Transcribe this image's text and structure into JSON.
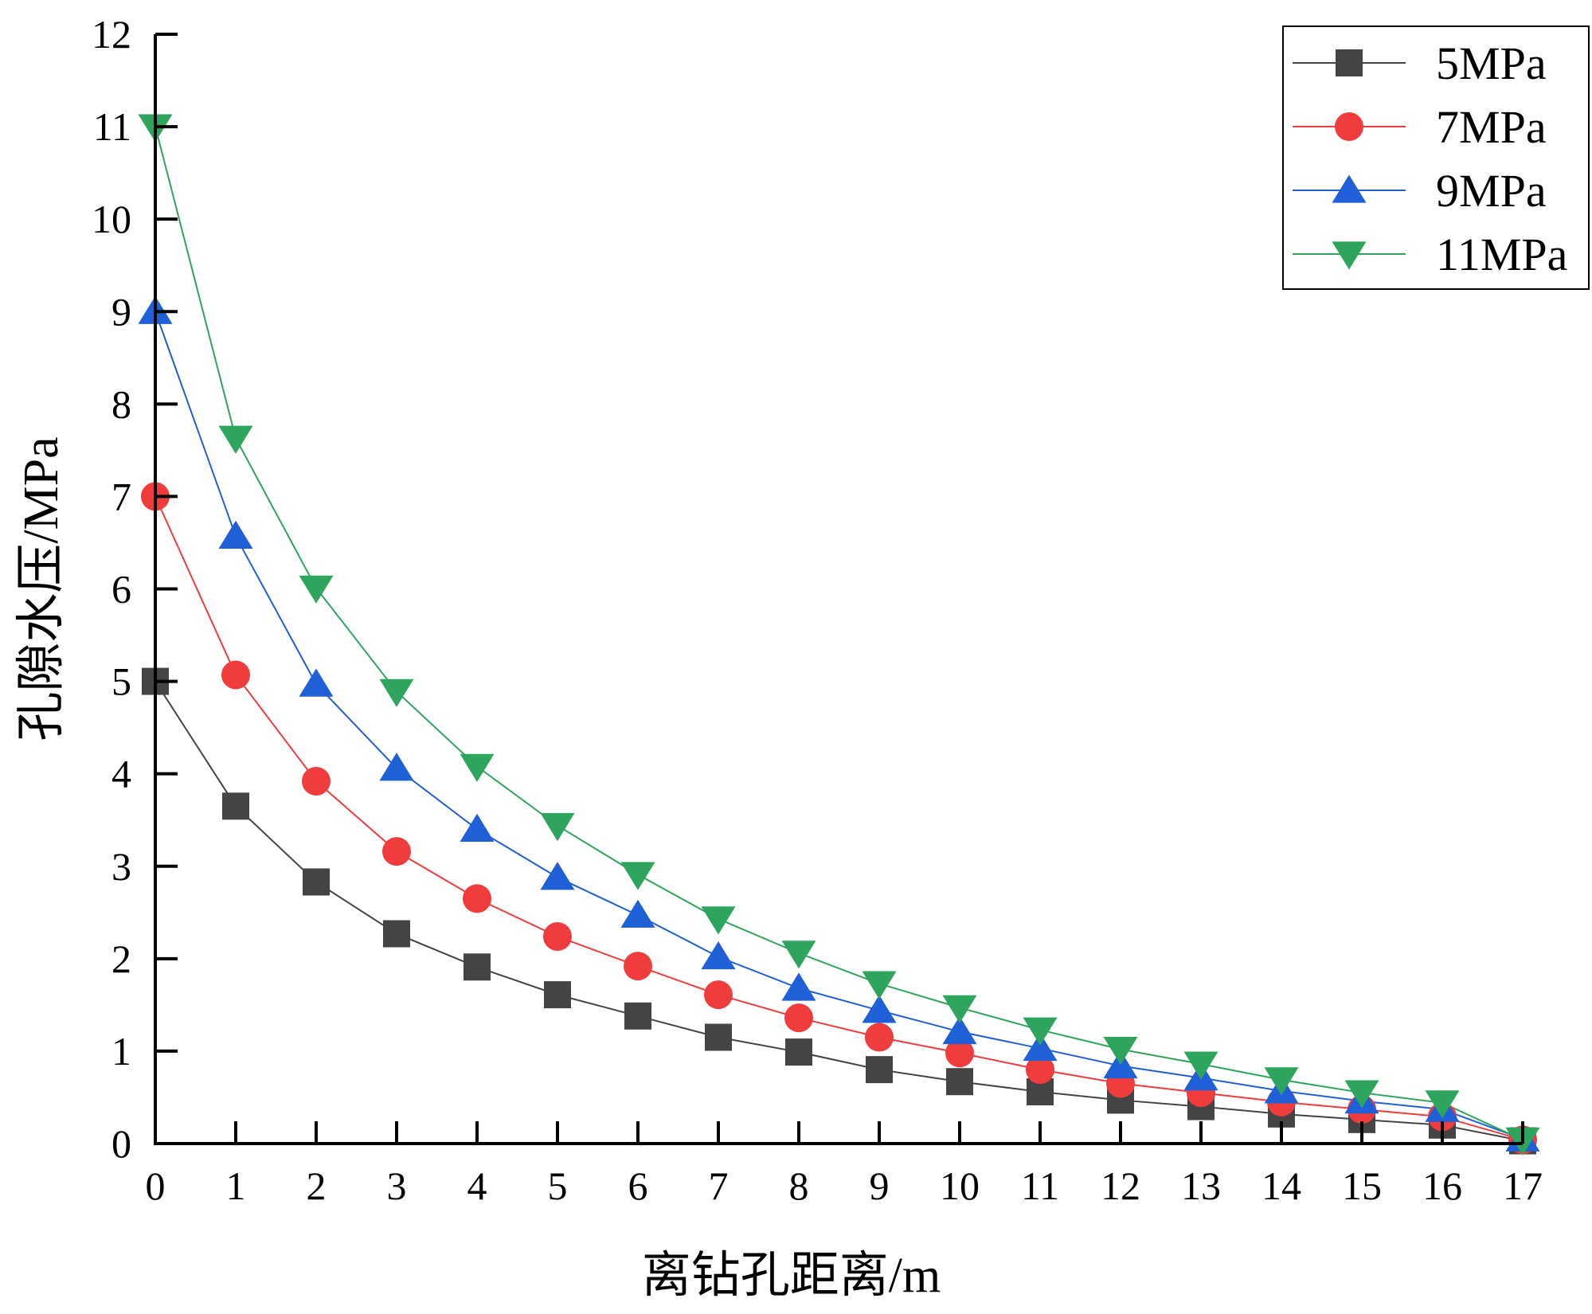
{
  "chart_data": {
    "type": "line",
    "title": "",
    "xlabel": "离钻孔距离/m",
    "ylabel": "孔隙水压/MPa",
    "xlim": [
      0,
      17
    ],
    "ylim": [
      0,
      12
    ],
    "xticks": [
      "0",
      "1",
      "2",
      "3",
      "4",
      "5",
      "6",
      "7",
      "8",
      "9",
      "10",
      "11",
      "12",
      "13",
      "14",
      "15",
      "16",
      "17"
    ],
    "yticks": [
      "0",
      "1",
      "2",
      "3",
      "4",
      "5",
      "6",
      "7",
      "8",
      "9",
      "10",
      "11",
      "12"
    ],
    "grid": false,
    "legend_position": "top-right",
    "x": [
      0,
      1,
      2,
      3,
      4,
      5,
      6,
      7,
      8,
      9,
      10,
      11,
      12,
      13,
      14,
      15,
      16,
      17
    ],
    "series": [
      {
        "name": "5MPa",
        "color": "#444444",
        "marker": "square",
        "values": [
          5.0,
          3.65,
          2.83,
          2.27,
          1.91,
          1.61,
          1.38,
          1.15,
          0.99,
          0.8,
          0.67,
          0.56,
          0.47,
          0.4,
          0.32,
          0.26,
          0.2,
          0.03
        ]
      },
      {
        "name": "7MPa",
        "color": "#f03c3c",
        "marker": "circle",
        "values": [
          7.0,
          5.07,
          3.92,
          3.16,
          2.65,
          2.24,
          1.92,
          1.61,
          1.36,
          1.15,
          0.98,
          0.8,
          0.65,
          0.55,
          0.45,
          0.37,
          0.29,
          0.04
        ]
      },
      {
        "name": "9MPa",
        "color": "#1f5fd8",
        "marker": "triangle-up",
        "values": [
          9.0,
          6.57,
          4.97,
          4.06,
          3.4,
          2.88,
          2.47,
          2.02,
          1.68,
          1.44,
          1.21,
          1.03,
          0.84,
          0.71,
          0.57,
          0.46,
          0.37,
          0.05
        ]
      },
      {
        "name": "11MPa",
        "color": "#2ea55e",
        "marker": "triangle-down",
        "values": [
          11.0,
          7.63,
          6.01,
          4.89,
          4.08,
          3.44,
          2.91,
          2.43,
          2.06,
          1.73,
          1.47,
          1.23,
          1.02,
          0.86,
          0.69,
          0.55,
          0.44,
          0.04
        ]
      }
    ]
  }
}
